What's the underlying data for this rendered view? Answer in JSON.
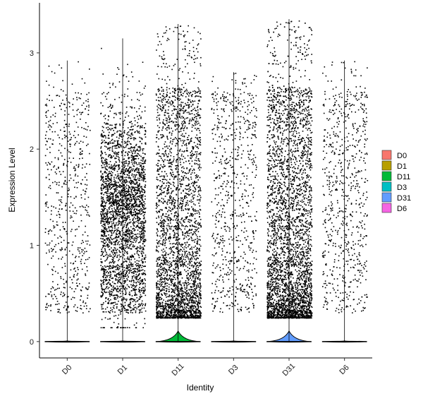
{
  "chart_data": {
    "type": "violin",
    "xlabel": "Identity",
    "ylabel": "Expression Level",
    "categories": [
      "D0",
      "D1",
      "D11",
      "D3",
      "D31",
      "D6"
    ],
    "ylim": [
      -0.17,
      3.52
    ],
    "yticks": [
      0,
      1,
      2,
      3
    ],
    "grid": false,
    "legend_position": "right",
    "series": [
      {
        "name": "D0",
        "color": "#F8766D",
        "max": 2.92,
        "n_points_approx": 600,
        "zero_fraction_high": true
      },
      {
        "name": "D1",
        "color": "#B79F00",
        "max": 3.15,
        "n_points_approx": 3000,
        "zero_fraction_high": true
      },
      {
        "name": "D11",
        "color": "#00BA38",
        "max": 3.3,
        "n_points_approx": 3000,
        "zero_fraction_high": true
      },
      {
        "name": "D3",
        "color": "#00BFC4",
        "max": 2.8,
        "n_points_approx": 700,
        "zero_fraction_high": true
      },
      {
        "name": "D31",
        "color": "#619CFF",
        "max": 3.35,
        "n_points_approx": 4000,
        "zero_fraction_high": true
      },
      {
        "name": "D6",
        "color": "#F564E3",
        "max": 2.92,
        "n_points_approx": 700,
        "zero_fraction_high": true
      }
    ]
  }
}
